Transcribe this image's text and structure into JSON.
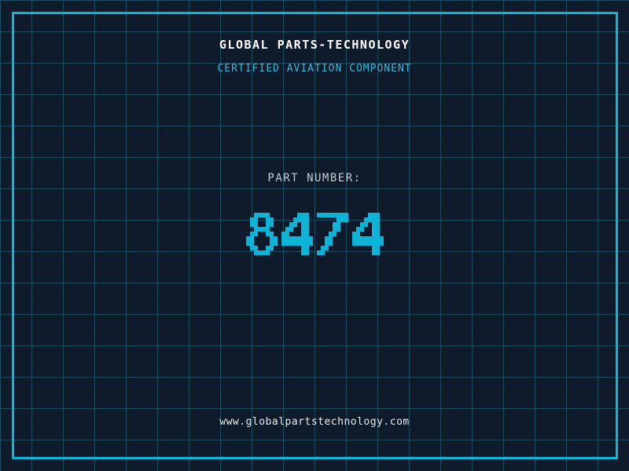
{
  "header": {
    "title": "GLOBAL PARTS-TECHNOLOGY",
    "subtitle": "CERTIFIED AVIATION COMPONENT"
  },
  "part": {
    "label": "PART NUMBER:",
    "number": "8474"
  },
  "footer": {
    "url": "www.globalpartstechnology.com"
  },
  "colors": {
    "background": "#0f1a2b",
    "grid_line": "#1b4d63",
    "frame_border": "#0db4d8",
    "accent_cyan": "#0db4d8",
    "subtitle_cyan": "#3db7d8",
    "label_gray": "#c7ccd4",
    "title_white": "#ffffff",
    "url_white": "#e8ecef"
  }
}
